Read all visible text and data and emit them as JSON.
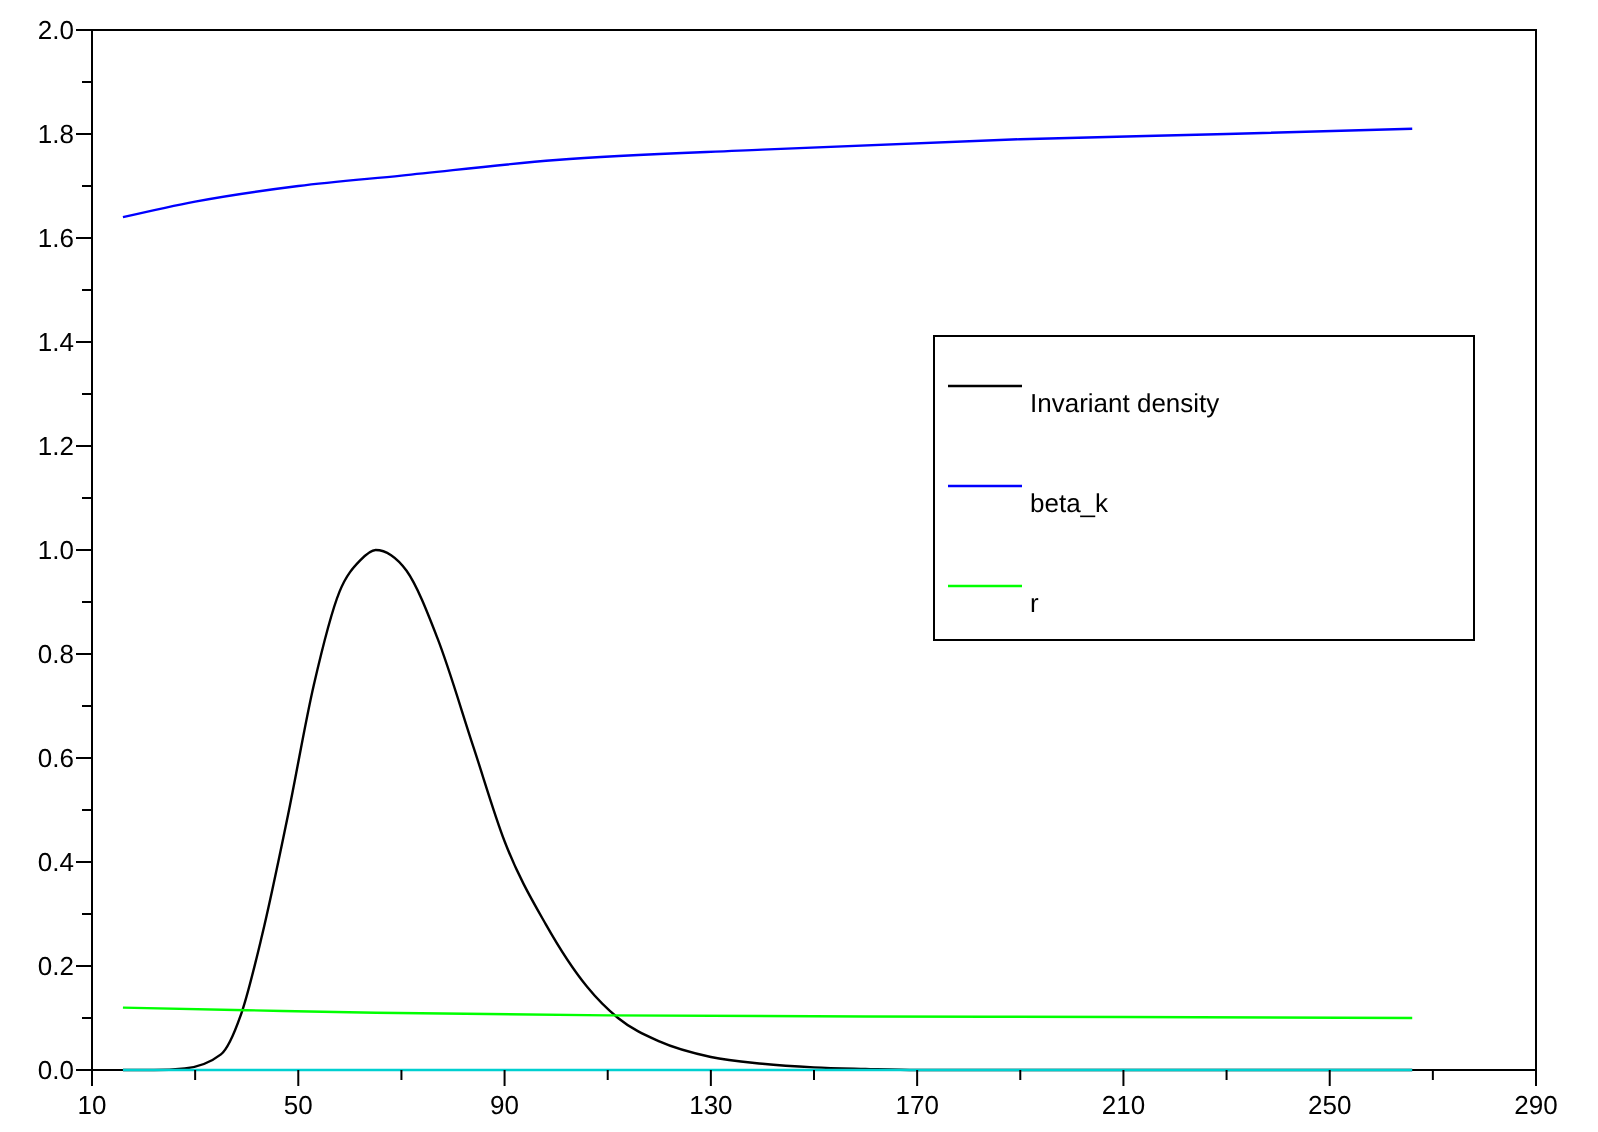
{
  "chart_data": {
    "type": "line",
    "xlim": [
      10,
      290
    ],
    "ylim": [
      0,
      2
    ],
    "xticks": [
      10,
      {
        "value": 30,
        "label": null
      },
      50,
      {
        "value": 70,
        "label": null
      },
      90,
      {
        "value": 110,
        "label": null
      },
      130,
      {
        "value": 150,
        "label": null
      },
      170,
      {
        "value": 190,
        "label": null
      },
      210,
      {
        "value": 230,
        "label": null
      },
      250,
      {
        "value": 270,
        "label": null
      },
      290
    ],
    "yticks": [
      {
        "value": 0,
        "label": "0.0"
      },
      {
        "value": 0.1,
        "label": null
      },
      {
        "value": 0.2,
        "label": "0.2"
      },
      {
        "value": 0.3,
        "label": null
      },
      {
        "value": 0.4,
        "label": "0.4"
      },
      {
        "value": 0.5,
        "label": null
      },
      {
        "value": 0.6,
        "label": "0.6"
      },
      {
        "value": 0.7,
        "label": null
      },
      {
        "value": 0.8,
        "label": "0.8"
      },
      {
        "value": 0.9,
        "label": null
      },
      {
        "value": 1,
        "label": "1.0"
      },
      {
        "value": 1.1,
        "label": null
      },
      {
        "value": 1.2,
        "label": "1.2"
      },
      {
        "value": 1.3,
        "label": null
      },
      {
        "value": 1.4,
        "label": "1.4"
      },
      {
        "value": 1.5,
        "label": null
      },
      {
        "value": 1.6,
        "label": "1.6"
      },
      {
        "value": 1.7,
        "label": null
      },
      {
        "value": 1.8,
        "label": "1.8"
      },
      {
        "value": 1.9,
        "label": null
      },
      {
        "value": 2,
        "label": "2.0"
      }
    ],
    "grid": false,
    "legend": "top right",
    "marker": "none",
    "line_style": "solid",
    "series": [
      {
        "name": "Invariant density",
        "color": "#000000",
        "x": [
          16,
          22,
          28,
          35,
          39,
          43,
          48,
          53,
          58,
          62,
          65,
          68,
          71,
          77,
          84,
          90,
          98,
          106,
          112,
          120,
          130,
          140,
          150,
          160,
          170,
          200,
          266
        ],
        "values": [
          0,
          0,
          0.003,
          0.03,
          0.11,
          0.26,
          0.49,
          0.74,
          0.92,
          0.98,
          1.0,
          0.99,
          0.96,
          0.83,
          0.62,
          0.44,
          0.28,
          0.16,
          0.1,
          0.055,
          0.025,
          0.012,
          0.005,
          0.002,
          0,
          0,
          0
        ]
      },
      {
        "name": "beta_k",
        "color": "#0000ff",
        "x": [
          16,
          30,
          50,
          70,
          100,
          140,
          190,
          230,
          266
        ],
        "values": [
          1.64,
          1.67,
          1.7,
          1.72,
          1.75,
          1.77,
          1.79,
          1.8,
          1.81
        ]
      },
      {
        "name": "r",
        "color": "#00ff00",
        "x": [
          16,
          40,
          65,
          110,
          160,
          210,
          266
        ],
        "values": [
          0.12,
          0.115,
          0.11,
          0.105,
          0.103,
          0.102,
          0.1
        ]
      },
      {
        "color": "#00d0d0",
        "x": [
          16,
          266
        ],
        "values": [
          0,
          0
        ]
      }
    ]
  }
}
